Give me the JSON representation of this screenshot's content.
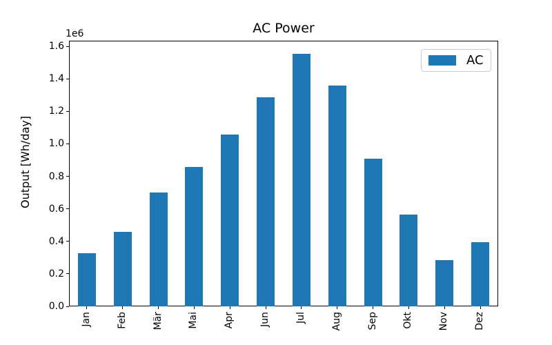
{
  "figure": {
    "title": "AC Power",
    "y_axis": {
      "label": "Output [Wh/day]",
      "offset_text": "1e6",
      "tick_labels": [
        "0.0",
        "0.2",
        "0.4",
        "0.6",
        "0.8",
        "1.0",
        "1.2",
        "1.4",
        "1.6"
      ]
    },
    "legend": {
      "items": [
        {
          "label": "AC",
          "color": "#1f77b4"
        }
      ]
    }
  },
  "chart_data": {
    "type": "bar",
    "title": "AC Power",
    "xlabel": "",
    "ylabel": "Output [Wh/day]",
    "y_scale_offset": "1e6",
    "categories": [
      "Jan",
      "Feb",
      "Mär",
      "Mai",
      "Apr",
      "Jun",
      "Jul",
      "Aug",
      "Sep",
      "Okt",
      "Nov",
      "Dez"
    ],
    "series": [
      {
        "name": "AC",
        "color": "#1f77b4",
        "values": [
          325000,
          457000,
          700000,
          858000,
          1055000,
          1287000,
          1555000,
          1360000,
          908000,
          565000,
          286000,
          395000
        ]
      }
    ],
    "yticks": [
      0,
      200000,
      400000,
      600000,
      800000,
      1000000,
      1200000,
      1400000,
      1600000
    ],
    "ylim": [
      0,
      1633000
    ],
    "x_tick_rotation": 90,
    "grid": false,
    "legend_position": "upper right"
  }
}
